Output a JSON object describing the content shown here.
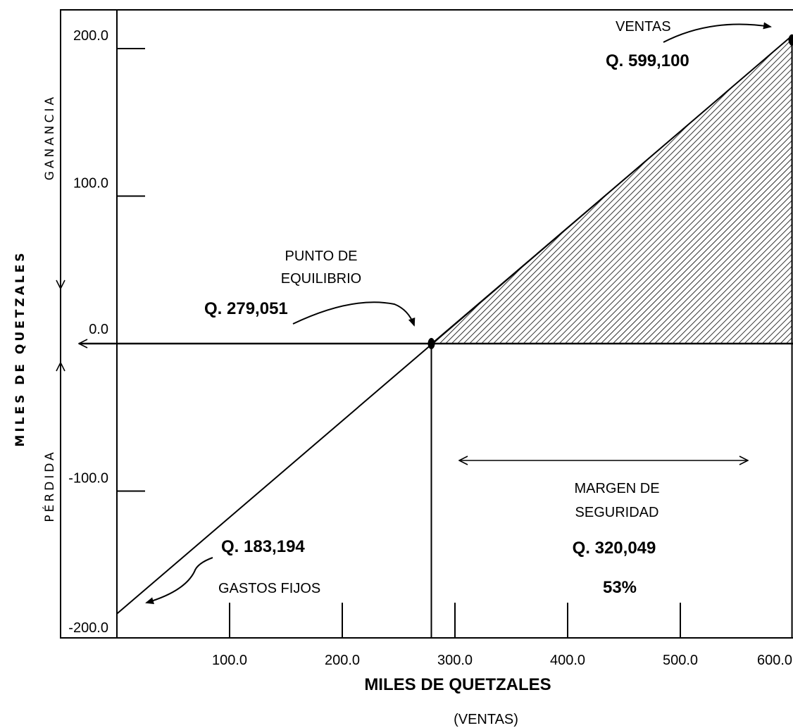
{
  "chart_data": {
    "type": "line",
    "xlabel": "MILES DE QUETZALES",
    "xlabel_sub": "(VENTAS)",
    "ylabel": "MILES DE QUETZALES",
    "ylabel_positive": "GANANCIA",
    "ylabel_negative": "PÉRDIDA",
    "xlim": [
      0,
      600
    ],
    "ylim": [
      -200,
      200
    ],
    "x_ticks": [
      100,
      200,
      300,
      400,
      500,
      600
    ],
    "x_tick_labels": [
      "100.0",
      "200.0",
      "300.0",
      "400.0",
      "500.0",
      "600.0"
    ],
    "y_ticks": [
      200,
      100,
      0,
      -100,
      -200
    ],
    "y_tick_labels": [
      "200.0",
      "100.0",
      "0.0",
      "-100.0",
      "-200.0"
    ],
    "series": [
      {
        "x": [
          0,
          599.1
        ],
        "y": [
          -183.194,
          208.7
        ]
      }
    ],
    "fill_region": {
      "x_from": 279.051,
      "x_to": 599.1,
      "pattern": "hatch"
    },
    "annotations": {
      "break_even": {
        "title": [
          "PUNTO DE",
          "EQUILIBRIO"
        ],
        "value": "Q. 279,051",
        "x": 279.051,
        "y": 0
      },
      "sales": {
        "title": "VENTAS",
        "value": "Q. 599,100",
        "x": 599.1,
        "y": 208.7
      },
      "fixed_costs": {
        "value": "Q. 183,194",
        "title": "GASTOS FIJOS",
        "x": 0,
        "y": -183.194
      },
      "safety_margin": {
        "title": [
          "MARGEN DE",
          "SEGURIDAD"
        ],
        "value": "Q. 320,049",
        "percent": "53%"
      }
    },
    "colors": {
      "line": "#000000",
      "background": "#ffffff"
    },
    "grid": false
  }
}
